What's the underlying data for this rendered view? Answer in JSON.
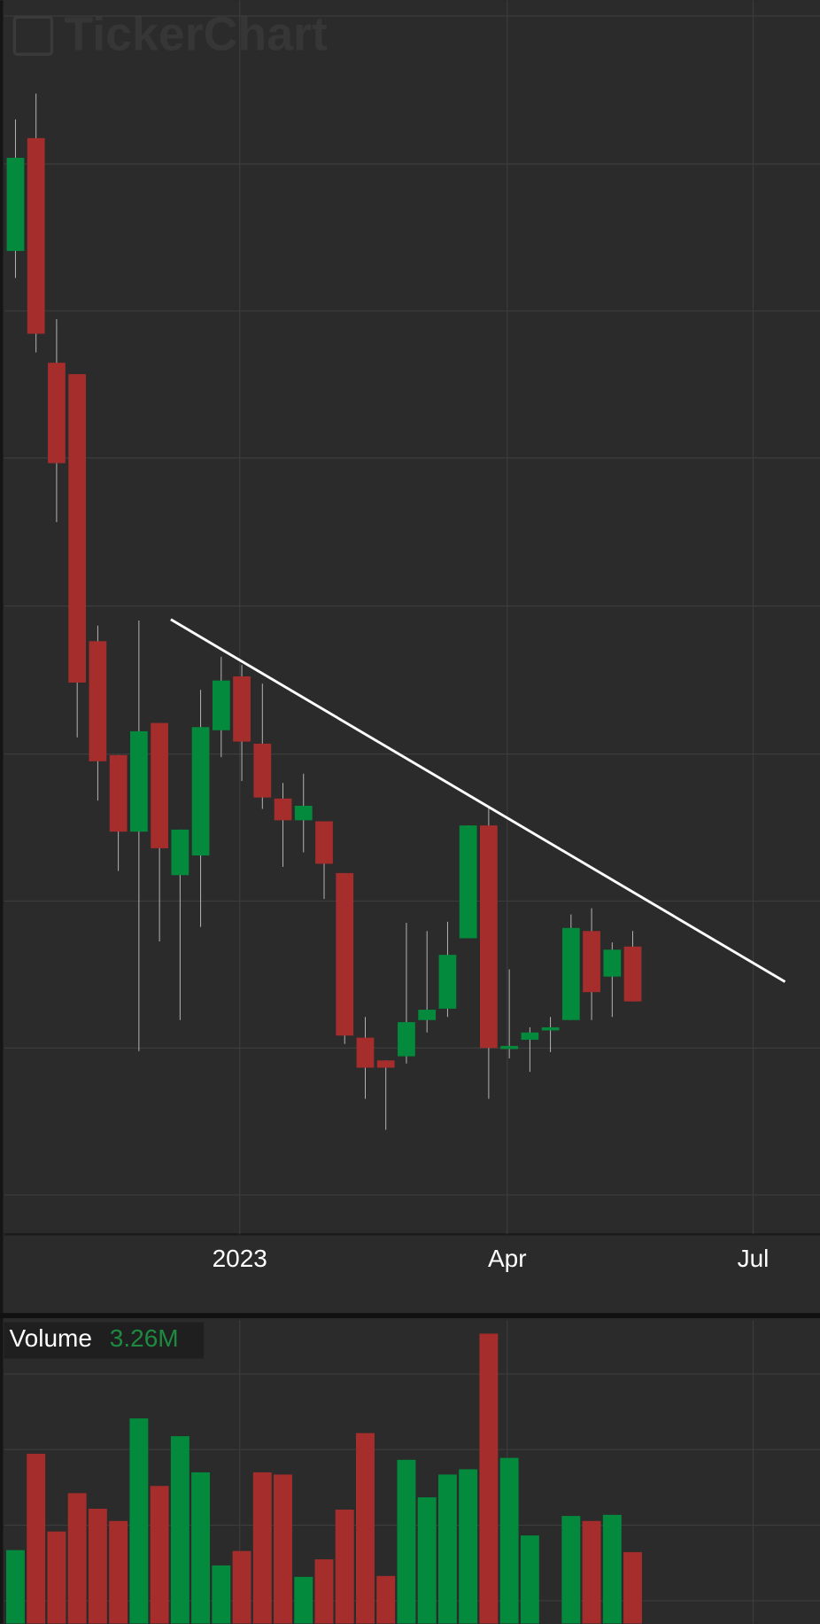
{
  "chart_data": [
    {
      "type": "candlestick",
      "watermark": "TickerChart",
      "x": [
        0,
        1,
        2,
        3,
        4,
        5,
        6,
        7,
        8,
        9,
        10,
        11,
        12,
        13,
        14,
        15,
        16,
        17,
        18,
        19,
        20,
        21,
        22,
        23,
        24,
        25,
        26,
        27,
        28,
        29,
        30
      ],
      "open": [
        950,
        1059,
        842,
        831,
        573,
        463,
        389,
        494,
        347,
        366,
        487,
        539,
        474,
        421,
        400,
        399,
        349,
        190,
        168,
        172,
        207,
        218,
        286,
        395,
        179,
        188,
        197,
        207,
        293,
        249,
        278
      ],
      "high": [
        1077,
        1102,
        884,
        831,
        588,
        463,
        593,
        494,
        391,
        526,
        558,
        550,
        532,
        436,
        445,
        399,
        349,
        210,
        168,
        301,
        293,
        302,
        395,
        414,
        256,
        200,
        210,
        309,
        315,
        282,
        293
      ],
      "low": [
        924,
        852,
        688,
        480,
        419,
        351,
        177,
        283,
        207,
        297,
        461,
        438,
        411,
        355,
        369,
        324,
        184,
        131,
        101,
        165,
        195,
        210,
        286,
        131,
        170,
        157,
        176,
        207,
        207,
        210,
        225
      ],
      "close": [
        1040,
        870,
        745,
        533,
        457,
        389,
        486,
        373,
        391,
        490,
        535,
        476,
        422,
        400,
        414,
        358,
        192,
        161,
        161,
        205,
        217,
        270,
        395,
        180,
        182,
        195,
        200,
        296,
        234,
        275,
        225
      ],
      "up_color": "#038a3c",
      "down_color": "#a52e2c",
      "xlim": [
        -0.55,
        39.1
      ],
      "xticks": [
        {
          "value": 10.9,
          "label": "2023"
        },
        {
          "value": 23.9,
          "label": "Apr"
        },
        {
          "value": 35.85,
          "label": "Jul"
        }
      ],
      "ylim": [
        0,
        1192
      ],
      "ygrid": [
        1177,
        1034,
        892,
        750,
        607,
        464,
        322,
        180,
        38
      ],
      "grid": true,
      "trendline": {
        "x": [
          7.55,
          37.4
        ],
        "y": [
          594,
          244
        ],
        "color": "#ffffff"
      }
    },
    {
      "type": "volume",
      "title": "Volume",
      "x": [
        0,
        1,
        2,
        3,
        4,
        5,
        6,
        7,
        8,
        9,
        10,
        11,
        12,
        13,
        14,
        15,
        16,
        17,
        18,
        19,
        20,
        21,
        22,
        23,
        24,
        25,
        26,
        27,
        28,
        29,
        30
      ],
      "values": [
        3.35,
        7.75,
        4.2,
        5.95,
        5.24,
        4.68,
        9.36,
        6.28,
        8.55,
        6.9,
        2.65,
        3.31,
        6.9,
        6.8,
        2.13,
        2.93,
        5.2,
        8.69,
        2.17,
        7.47,
        5.76,
        6.8,
        7.04,
        13.23,
        7.56,
        4.02,
        null,
        4.91,
        4.68,
        4.96,
        3.26
      ],
      "value_labels": [
        null,
        null,
        null,
        null,
        null,
        null,
        null,
        null,
        null,
        null,
        null,
        null,
        null,
        null,
        null,
        null,
        null,
        null,
        null,
        null,
        null,
        null,
        null,
        null,
        null,
        null,
        null,
        null,
        null,
        null,
        "3.26M"
      ],
      "label_color": "#1e8a40",
      "xlim": [
        -0.55,
        39.1
      ],
      "ylim": [
        0,
        13.84
      ],
      "ygrid": [
        11.39,
        7.94,
        4.49,
        1.04
      ],
      "grid": true
    }
  ]
}
